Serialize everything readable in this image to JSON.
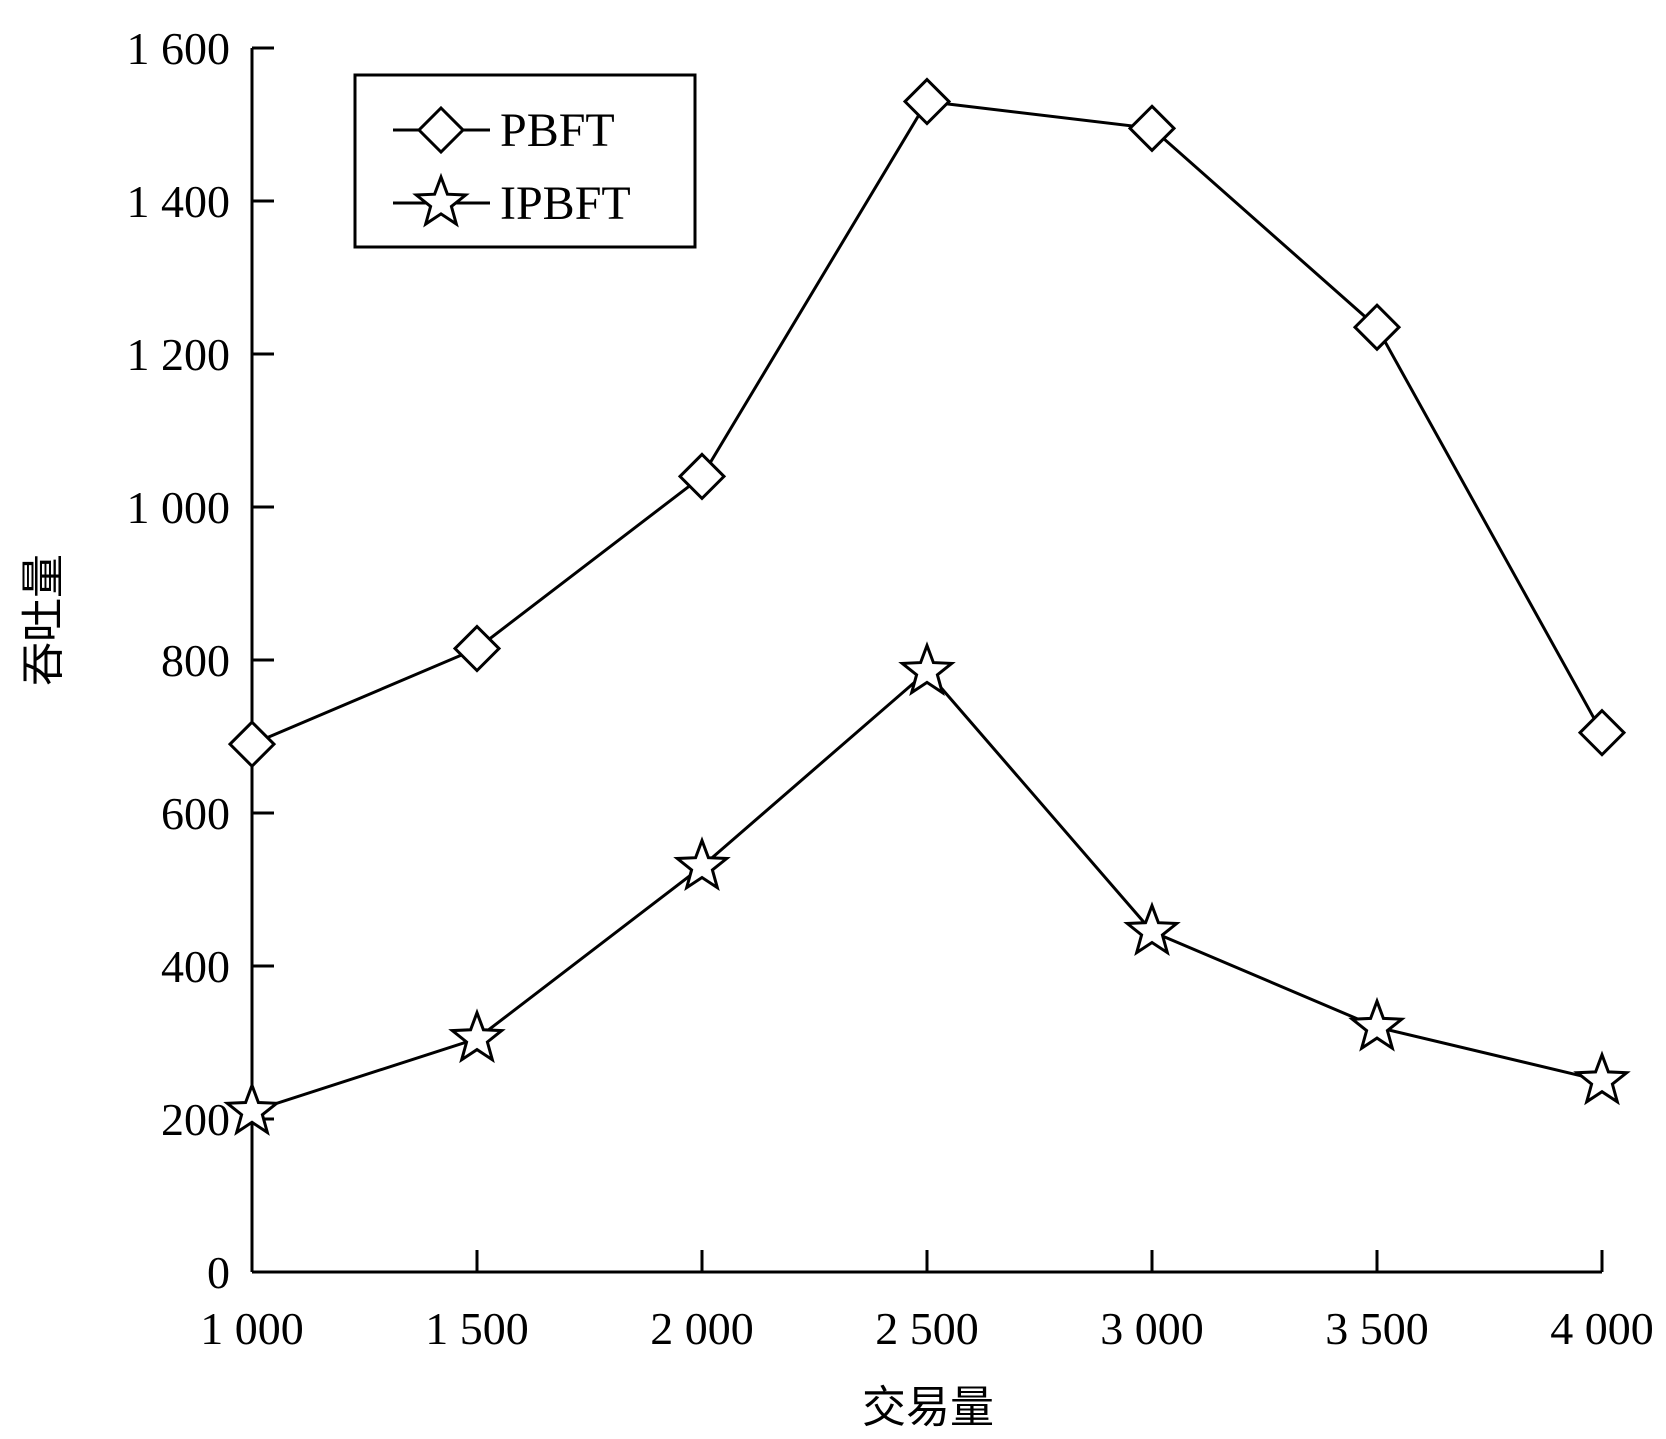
{
  "chart_data": {
    "type": "line",
    "title": "",
    "xlabel": "交易量",
    "ylabel": "吞吐量",
    "x": [
      1000,
      1500,
      2000,
      2500,
      3000,
      3500,
      4000
    ],
    "x_tick_labels": [
      "1 000",
      "1 500",
      "2 000",
      "2 500",
      "3 000",
      "3 500",
      "4 000"
    ],
    "y_ticks": [
      0,
      200,
      400,
      600,
      800,
      1000,
      1200,
      1400,
      1600
    ],
    "y_tick_labels": [
      "0",
      "200",
      "400",
      "600",
      "800",
      "1 000",
      "1 200",
      "1 400",
      "1 600"
    ],
    "xlim": [
      1000,
      4000
    ],
    "ylim": [
      0,
      1600
    ],
    "grid": false,
    "legend_position": "top-left",
    "series": [
      {
        "name": "PBFT",
        "marker": "diamond",
        "color": "#000000",
        "values": [
          690,
          815,
          1040,
          1530,
          1495,
          1235,
          705
        ]
      },
      {
        "name": "IPBFT",
        "marker": "star",
        "color": "#000000",
        "values": [
          210,
          305,
          530,
          785,
          445,
          320,
          250
        ]
      }
    ]
  }
}
